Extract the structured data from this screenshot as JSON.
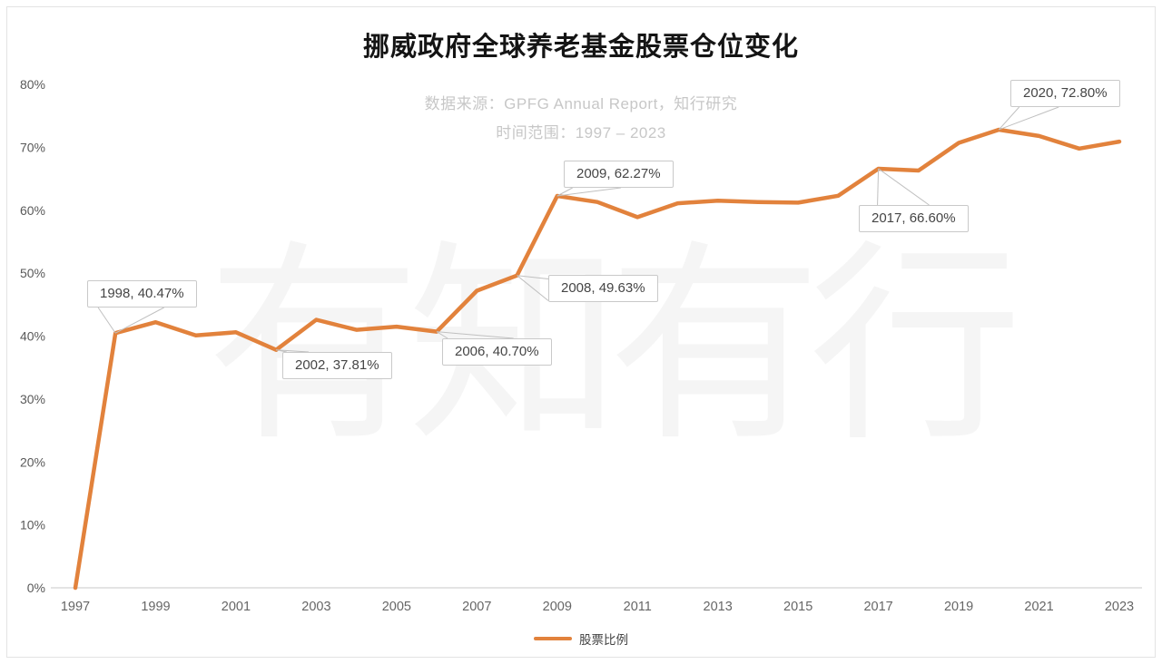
{
  "watermark": "有知有行",
  "chart_data": {
    "type": "line",
    "title": "挪威政府全球养老基金股票仓位变化",
    "subtitle_line1": "数据来源：GPFG Annual Report，知行研究",
    "subtitle_line2": "时间范围：1997 – 2023",
    "x": [
      1997,
      1998,
      1999,
      2000,
      2001,
      2002,
      2003,
      2004,
      2005,
      2006,
      2007,
      2008,
      2009,
      2010,
      2011,
      2012,
      2013,
      2014,
      2015,
      2016,
      2017,
      2018,
      2019,
      2020,
      2021,
      2022,
      2023
    ],
    "series": [
      {
        "name": "股票比例",
        "color": "#E2823C",
        "values": [
          0,
          40.47,
          42.2,
          40.1,
          40.6,
          37.81,
          42.6,
          41.0,
          41.5,
          40.7,
          47.2,
          49.63,
          62.27,
          61.3,
          58.9,
          61.1,
          61.5,
          61.3,
          61.2,
          62.3,
          66.6,
          66.3,
          70.7,
          72.8,
          71.8,
          69.8,
          70.9
        ]
      }
    ],
    "ylim": [
      0,
      80
    ],
    "yticks": [
      "0%",
      "10%",
      "20%",
      "30%",
      "40%",
      "50%",
      "60%",
      "70%",
      "80%"
    ],
    "xticks": [
      1997,
      1999,
      2001,
      2003,
      2005,
      2007,
      2009,
      2011,
      2013,
      2015,
      2017,
      2019,
      2021,
      2023
    ],
    "grid": false,
    "legend_position": "bottom",
    "annotations": [
      {
        "year": 1998,
        "value": 40.47,
        "text": "1998, 40.47%"
      },
      {
        "year": 2002,
        "value": 37.81,
        "text": "2002, 37.81%"
      },
      {
        "year": 2006,
        "value": 40.7,
        "text": "2006, 40.70%"
      },
      {
        "year": 2008,
        "value": 49.63,
        "text": "2008, 49.63%"
      },
      {
        "year": 2009,
        "value": 62.27,
        "text": "2009, 62.27%"
      },
      {
        "year": 2017,
        "value": 66.6,
        "text": "2017, 66.60%"
      },
      {
        "year": 2020,
        "value": 72.8,
        "text": "2020, 72.80%"
      }
    ],
    "colors": {
      "line": "#E2823C",
      "axis_line": "#e4e4e4",
      "leader_line": "#c0c0c0",
      "tick_text": "#595959",
      "subtitle_text": "#c7c7c7",
      "watermark_text": "#f5f5f5"
    }
  }
}
